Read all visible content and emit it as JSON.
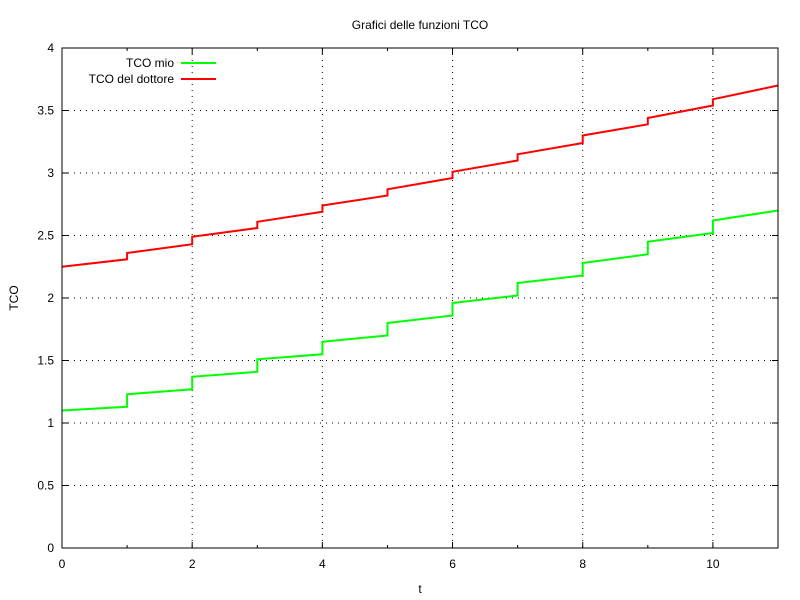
{
  "chart_data": {
    "type": "line",
    "title": "Grafici delle funzioni TCO",
    "xlabel": "t",
    "ylabel": "TCO",
    "xlim": [
      0,
      11
    ],
    "ylim": [
      0,
      4
    ],
    "xticks": [
      0,
      2,
      4,
      6,
      8,
      10
    ],
    "yticks": [
      0,
      0.5,
      1,
      1.5,
      2,
      2.5,
      3,
      3.5,
      4
    ],
    "ytick_labels": [
      "0",
      "0.5",
      "1",
      "1.5",
      "2",
      "2.5",
      "3",
      "3.5",
      "4"
    ],
    "grid": "dotted",
    "legend_position": "top-left",
    "series": [
      {
        "name": "TCO mio",
        "color": "#00ff00",
        "x": [
          0,
          1,
          1,
          2,
          2,
          3,
          3,
          4,
          4,
          5,
          5,
          6,
          6,
          7,
          7,
          8,
          8,
          9,
          9,
          10,
          10,
          11
        ],
        "y": [
          1.1,
          1.13,
          1.23,
          1.27,
          1.37,
          1.41,
          1.51,
          1.55,
          1.65,
          1.7,
          1.8,
          1.86,
          1.96,
          2.02,
          2.12,
          2.18,
          2.28,
          2.35,
          2.45,
          2.52,
          2.62,
          2.7
        ]
      },
      {
        "name": "TCO del dottore",
        "color": "#ff0000",
        "x": [
          0,
          1,
          1,
          2,
          2,
          3,
          3,
          4,
          4,
          5,
          5,
          6,
          6,
          7,
          7,
          8,
          8,
          9,
          9,
          10,
          10,
          11
        ],
        "y": [
          2.25,
          2.31,
          2.36,
          2.43,
          2.49,
          2.56,
          2.61,
          2.69,
          2.74,
          2.82,
          2.87,
          2.96,
          3.01,
          3.1,
          3.15,
          3.24,
          3.3,
          3.39,
          3.44,
          3.54,
          3.59,
          3.7
        ]
      }
    ]
  }
}
